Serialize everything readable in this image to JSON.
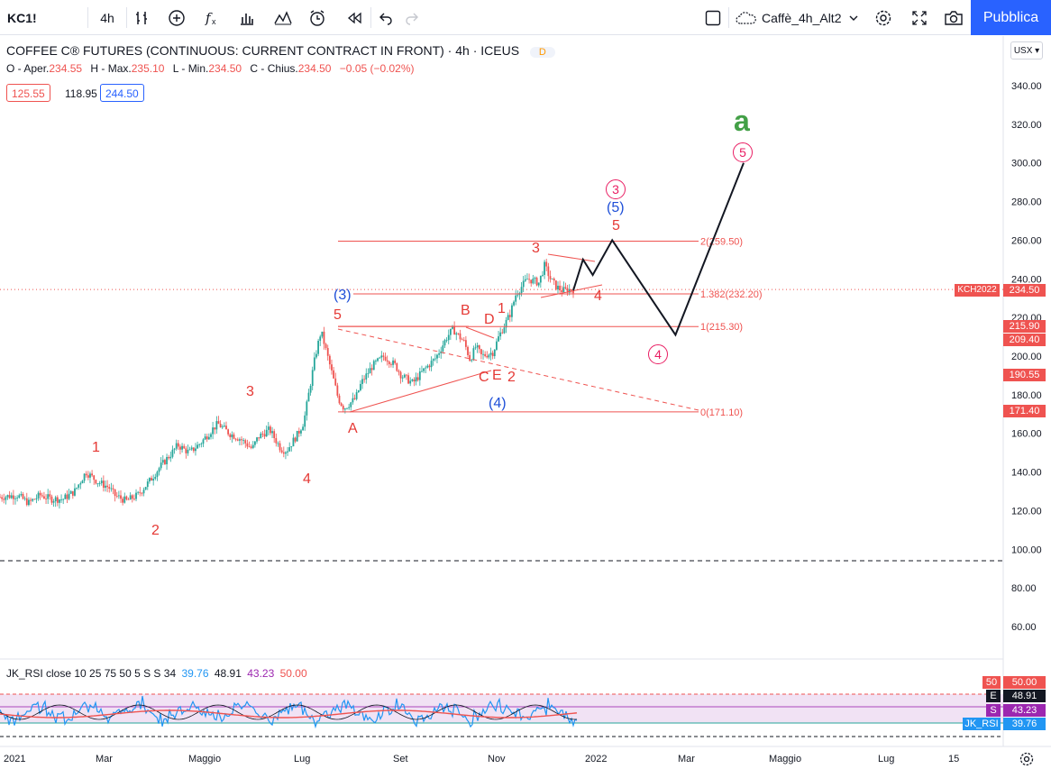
{
  "toolbar": {
    "symbol": "KC1!",
    "interval": "4h",
    "layout_name": "Caffè_4h_Alt2",
    "publish_label": "Pubblica",
    "icons": [
      "indicators-icon",
      "add-icon",
      "fx-icon",
      "bar-style-icon",
      "templates-icon",
      "alert-icon",
      "replay-icon",
      "undo-icon",
      "redo-icon",
      "fullscreen-checkbox-icon",
      "cloud-icon",
      "settings-icon",
      "fullscreen-icon",
      "camera-icon"
    ]
  },
  "legend": {
    "title": "COFFEE C® FUTURES (CONTINUOUS: CURRENT CONTRACT IN FRONT) · 4h · ICEUS",
    "data_badge": "D",
    "ohlc": [
      {
        "k": "O - Aper.",
        "v": "234.55"
      },
      {
        "k": "H - Max.",
        "v": "235.10"
      },
      {
        "k": "L - Min.",
        "v": "234.50"
      },
      {
        "k": "C - Chius.",
        "v": "234.50"
      }
    ],
    "change": "−0.05 (−0.02%)",
    "bid": "125.55",
    "mid": "118.95",
    "ask": "244.50"
  },
  "currency": "USX",
  "colors": {
    "up": "#26a69a",
    "down": "#ef5350",
    "accent": "#2962ff",
    "red_wave": "#e53935",
    "blue_wave": "#1e4fd8",
    "pink_wave": "#e91e63",
    "green_wave": "#43a047"
  },
  "chart_data": {
    "type": "candlestick",
    "yticks": [
      "340.00",
      "320.00",
      "300.00",
      "280.00",
      "260.00",
      "240.00",
      "220.00",
      "200.00",
      "180.00",
      "160.00",
      "140.00",
      "120.00",
      "100.00",
      "80.00",
      "60.00"
    ],
    "xticks": [
      "2021",
      "Mar",
      "Maggio",
      "Lug",
      "Set",
      "Nov",
      "2022",
      "Mar",
      "Maggio",
      "Lug",
      "15"
    ],
    "price_path": [
      [
        0,
        127
      ],
      [
        0.03,
        128
      ],
      [
        0.05,
        124
      ],
      [
        0.07,
        128
      ],
      [
        0.09,
        126
      ],
      [
        0.11,
        126
      ],
      [
        0.13,
        130
      ],
      [
        0.15,
        140
      ],
      [
        0.17,
        135
      ],
      [
        0.19,
        132
      ],
      [
        0.2,
        128
      ],
      [
        0.22,
        125
      ],
      [
        0.24,
        128
      ],
      [
        0.26,
        135
      ],
      [
        0.28,
        143
      ],
      [
        0.3,
        150
      ],
      [
        0.31,
        154
      ],
      [
        0.33,
        150
      ],
      [
        0.35,
        155
      ],
      [
        0.37,
        162
      ],
      [
        0.38,
        165
      ],
      [
        0.4,
        160
      ],
      [
        0.42,
        157
      ],
      [
        0.44,
        152
      ],
      [
        0.45,
        158
      ],
      [
        0.47,
        162
      ],
      [
        0.49,
        152
      ],
      [
        0.5,
        151
      ],
      [
        0.52,
        160
      ],
      [
        0.53,
        166
      ],
      [
        0.55,
        200
      ],
      [
        0.56,
        213
      ],
      [
        0.58,
        190
      ],
      [
        0.59,
        178
      ],
      [
        0.6,
        173
      ],
      [
        0.62,
        178
      ],
      [
        0.63,
        186
      ],
      [
        0.65,
        195
      ],
      [
        0.67,
        200
      ],
      [
        0.69,
        195
      ],
      [
        0.7,
        190
      ],
      [
        0.72,
        186
      ],
      [
        0.74,
        193
      ],
      [
        0.76,
        199
      ],
      [
        0.78,
        210
      ],
      [
        0.79,
        214
      ],
      [
        0.81,
        207
      ],
      [
        0.82,
        198
      ],
      [
        0.83,
        205
      ],
      [
        0.84,
        200
      ],
      [
        0.86,
        202
      ],
      [
        0.87,
        210
      ],
      [
        0.89,
        222
      ],
      [
        0.9,
        232
      ],
      [
        0.92,
        240
      ],
      [
        0.94,
        238
      ],
      [
        0.95,
        247
      ],
      [
        0.96,
        240
      ],
      [
        0.97,
        236
      ],
      [
        0.98,
        234
      ],
      [
        1,
        234.5
      ]
    ],
    "price_labels": [
      {
        "t": "KCH2022",
        "v": "234.50",
        "c": "#ef5350"
      },
      {
        "t": "",
        "v": "215.90",
        "c": "#ef5350"
      },
      {
        "t": "",
        "v": "209.40",
        "c": "#ef5350"
      },
      {
        "t": "",
        "v": "190.55",
        "c": "#ef5350"
      },
      {
        "t": "",
        "v": "171.40",
        "c": "#ef5350"
      }
    ],
    "fib_levels": [
      {
        "label": "2(259.50)",
        "value": 259.5
      },
      {
        "label": "1.382(232.20)",
        "value": 232.2
      },
      {
        "label": "1(215.30)",
        "value": 215.3
      },
      {
        "label": "0(171.10)",
        "value": 171.1
      }
    ],
    "wave_labels": [
      "1",
      "2",
      "3",
      "4",
      "5",
      "(3)",
      "A",
      "B",
      "C",
      "D",
      "E",
      "(4)",
      "1",
      "2",
      "3",
      "4",
      "5",
      "(5)",
      "3",
      "4",
      "5",
      "a"
    ],
    "projection": [
      [
        0.0,
        234
      ],
      [
        0.04,
        250
      ],
      [
        0.08,
        242
      ],
      [
        0.16,
        260
      ],
      [
        0.42,
        211
      ],
      [
        0.7,
        300
      ]
    ]
  },
  "rsi": {
    "title": "JK_RSI close 10 25 75 50 5 S S 34",
    "values": [
      "39.76",
      "48.91",
      "43.23",
      "50.00"
    ],
    "tags": [
      {
        "k": "50",
        "v": "50.00",
        "c": "#ef5350"
      },
      {
        "k": "E",
        "v": "48.91",
        "c": "#131722"
      },
      {
        "k": "S",
        "v": "43.23",
        "c": "#9c27b0"
      },
      {
        "k": "JK_RSI",
        "v": "39.76",
        "c": "#2196f3"
      }
    ]
  }
}
